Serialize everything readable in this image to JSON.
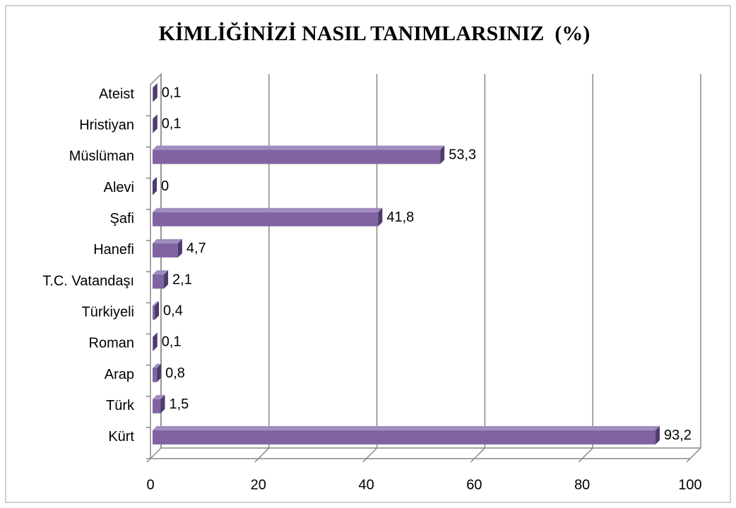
{
  "chart_data": {
    "type": "bar",
    "orientation": "horizontal",
    "title": "KİMLİĞİNİZİ NASIL TANIMLARSINIZ  (%)",
    "categories": [
      "Kürt",
      "Türk",
      "Arap",
      "Roman",
      "Türkiyeli",
      "T.C. Vatandaşı",
      "Hanefi",
      "Şafi",
      "Alevi",
      "Müslüman",
      "Hristiyan",
      "Ateist"
    ],
    "values": [
      93.2,
      1.5,
      0.8,
      0.1,
      0.4,
      2.1,
      4.7,
      41.8,
      0,
      53.3,
      0.1,
      0.1
    ],
    "value_labels": [
      "93,2",
      "1,5",
      "0,8",
      "0,1",
      "0,4",
      "2,1",
      "4,7",
      "41,8",
      "0",
      "53,3",
      "0,1",
      "0,1"
    ],
    "color": "#8064a2",
    "xlim": [
      0,
      100
    ],
    "xticks": [
      0,
      20,
      40,
      60,
      80,
      100
    ],
    "grid": true
  }
}
